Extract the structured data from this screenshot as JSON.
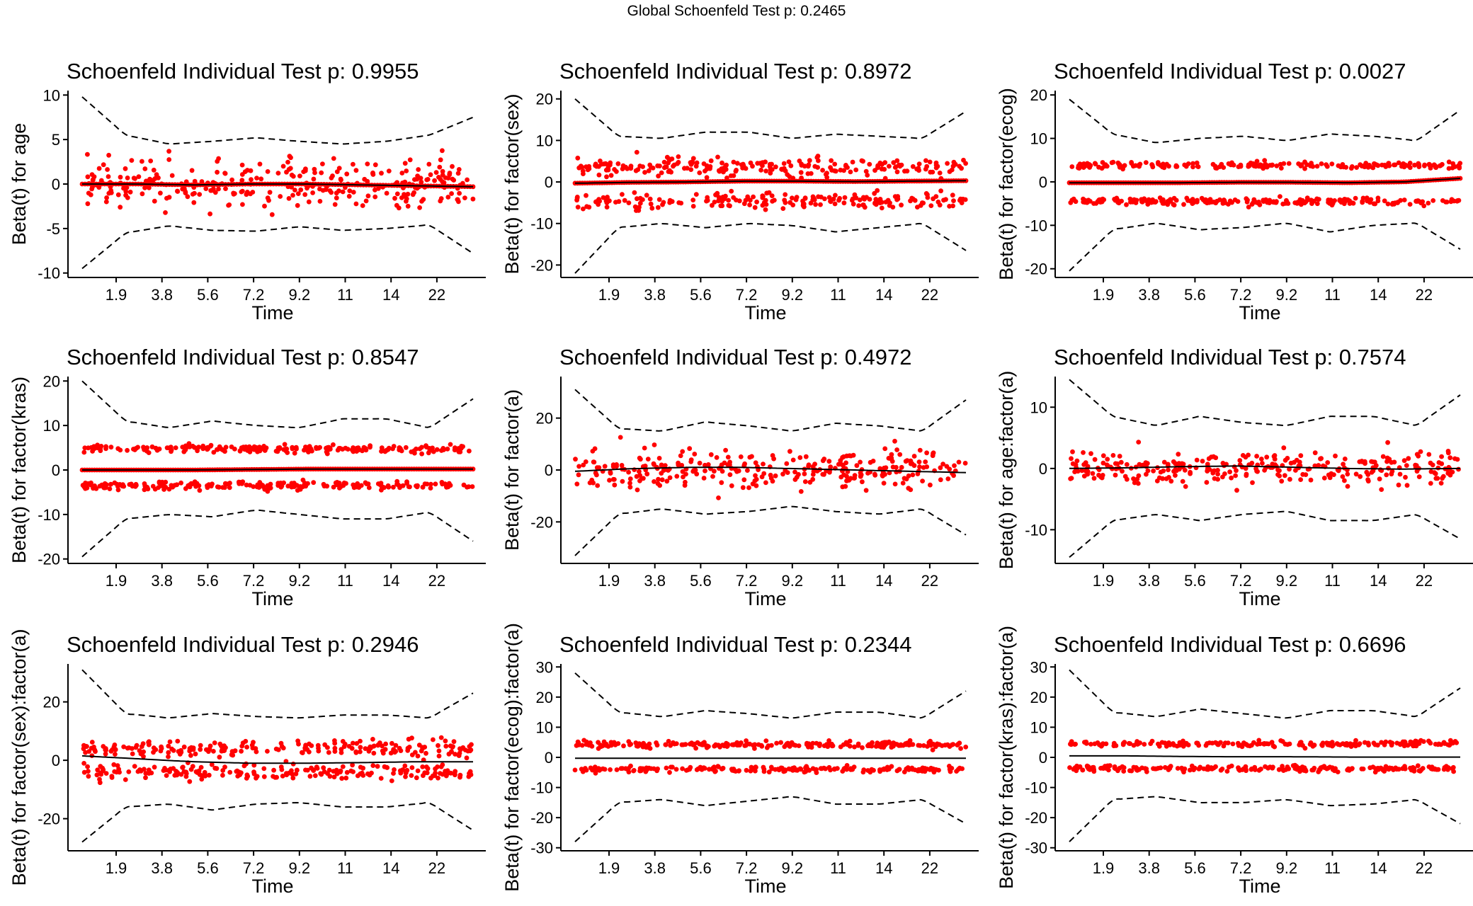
{
  "global_title": "Global Schoenfeld Test p: 0.2465",
  "colors": {
    "points": "#ff0000",
    "line": "#000000",
    "band": "#000000",
    "axis": "#000000"
  },
  "chart_data": [
    {
      "type": "scatter",
      "title": "Schoenfeld Individual Test p: 0.9955",
      "xlabel": "Time",
      "ylabel": "Beta(t) for age",
      "x_ticks": [
        "1.9",
        "3.8",
        "5.6",
        "7.2",
        "9.2",
        "11",
        "14",
        "22"
      ],
      "y_ticks": [
        -10,
        -5,
        0,
        5,
        10
      ],
      "ylim": [
        -10.5,
        10.5
      ],
      "point_clusters": [
        {
          "center": 0,
          "spread": 2.5
        }
      ],
      "fit": [
        0.0,
        0.0,
        -0.1,
        0.0,
        0.0,
        -0.1,
        -0.2,
        -0.3
      ],
      "band_upper": [
        9.8,
        5.5,
        4.5,
        4.8,
        5.2,
        4.8,
        4.5,
        4.8,
        5.5,
        7.5
      ],
      "band_lower": [
        -9.5,
        -5.5,
        -4.7,
        -5.2,
        -5.3,
        -4.8,
        -5.2,
        -5.0,
        -4.6,
        -7.8
      ]
    },
    {
      "type": "scatter",
      "title": "Schoenfeld Individual Test p: 0.8972",
      "xlabel": "Time",
      "ylabel": "Beta(t) for factor(sex)",
      "x_ticks": [
        "1.9",
        "3.8",
        "5.6",
        "7.2",
        "9.2",
        "11",
        "14",
        "22"
      ],
      "y_ticks": [
        -20,
        -10,
        0,
        10,
        20
      ],
      "ylim": [
        -23,
        22
      ],
      "point_clusters": [
        {
          "center": 3.5,
          "spread": 2
        },
        {
          "center": -4.5,
          "spread": 2
        }
      ],
      "fit": [
        -0.3,
        -0.1,
        0.0,
        0.2,
        0.2,
        0.1,
        0.2,
        0.3
      ],
      "band_upper": [
        20,
        11,
        10.5,
        12,
        12,
        10.5,
        11.5,
        11,
        10.5,
        17
      ],
      "band_lower": [
        -22,
        -11,
        -10,
        -11,
        -10,
        -10.5,
        -12,
        -11,
        -10,
        -16.5
      ]
    },
    {
      "type": "scatter",
      "title": "Schoenfeld Individual Test p: 0.0027",
      "xlabel": "Time",
      "ylabel": "Beta(t) for factor(ecog)",
      "x_ticks": [
        "1.9",
        "3.8",
        "5.6",
        "7.2",
        "9.2",
        "11",
        "14",
        "22"
      ],
      "y_ticks": [
        -20,
        -10,
        0,
        10,
        20
      ],
      "ylim": [
        -22,
        21
      ],
      "point_clusters": [
        {
          "center": 3.8,
          "spread": 0.7
        },
        {
          "center": -4.5,
          "spread": 0.7
        }
      ],
      "fit": [
        -0.2,
        -0.2,
        -0.2,
        -0.1,
        -0.1,
        -0.2,
        0.0,
        0.8
      ],
      "band_upper": [
        19,
        11,
        9,
        10,
        10.5,
        9.5,
        11,
        10.5,
        9.5,
        16.5
      ],
      "band_lower": [
        -20.5,
        -11,
        -9.5,
        -11,
        -10.5,
        -9.5,
        -11.5,
        -10,
        -9.5,
        -15.5
      ]
    },
    {
      "type": "scatter",
      "title": "Schoenfeld Individual Test p: 0.8547",
      "xlabel": "Time",
      "ylabel": "Beta(t) for factor(kras)",
      "x_ticks": [
        "1.9",
        "3.8",
        "5.6",
        "7.2",
        "9.2",
        "11",
        "14",
        "22"
      ],
      "y_ticks": [
        -20,
        -10,
        0,
        10,
        20
      ],
      "ylim": [
        -21,
        21
      ],
      "point_clusters": [
        {
          "center": 4.8,
          "spread": 0.8
        },
        {
          "center": -3.5,
          "spread": 0.9
        }
      ],
      "fit": [
        0.0,
        0.0,
        0.0,
        0.1,
        0.2,
        0.2,
        0.2,
        0.2
      ],
      "band_upper": [
        20,
        11,
        9.5,
        11,
        10,
        9.5,
        11.5,
        11.5,
        9.5,
        16
      ],
      "band_lower": [
        -19.5,
        -11,
        -10,
        -10.5,
        -9,
        -10,
        -11,
        -11,
        -9.5,
        -16
      ]
    },
    {
      "type": "scatter",
      "title": "Schoenfeld Individual Test p: 0.4972",
      "xlabel": "Time",
      "ylabel": "Beta(t) for factor(a)",
      "x_ticks": [
        "1.9",
        "3.8",
        "5.6",
        "7.2",
        "9.2",
        "11",
        "14",
        "22"
      ],
      "y_ticks": [
        -20,
        0,
        20
      ],
      "ylim": [
        -36,
        36
      ],
      "point_clusters": [
        {
          "center": 0,
          "spread": 7
        }
      ],
      "fit": [
        -0.5,
        0.5,
        1.0,
        1.0,
        0.5,
        0.0,
        -0.5,
        -1.0
      ],
      "band_upper": [
        31,
        16,
        15,
        18.5,
        17,
        15,
        18,
        17,
        15,
        27
      ],
      "band_lower": [
        -33,
        -17,
        -15,
        -17,
        -16,
        -14,
        -16,
        -17,
        -15,
        -25
      ]
    },
    {
      "type": "scatter",
      "title": "Schoenfeld Individual Test p: 0.7574",
      "xlabel": "Time",
      "ylabel": "Beta(t) for age:factor(a)",
      "x_ticks": [
        "1.9",
        "3.8",
        "5.6",
        "7.2",
        "9.2",
        "11",
        "14",
        "22"
      ],
      "y_ticks": [
        -10,
        0,
        10
      ],
      "ylim": [
        -15.5,
        15
      ],
      "point_clusters": [
        {
          "center": 0,
          "spread": 2.3
        }
      ],
      "fit": [
        0.0,
        0.1,
        0.3,
        0.4,
        0.2,
        0.0,
        -0.1,
        0.0
      ],
      "band_upper": [
        14.5,
        8.5,
        7,
        8.5,
        7.5,
        7,
        8.5,
        8.5,
        7,
        12
      ],
      "band_lower": [
        -14.5,
        -8.5,
        -7.5,
        -8.5,
        -7.5,
        -7,
        -8.5,
        -8.5,
        -7.5,
        -11.5
      ]
    },
    {
      "type": "scatter",
      "title": "Schoenfeld Individual Test p: 0.2946",
      "xlabel": "Time",
      "ylabel": "Beta(t) for factor(sex):factor(a)",
      "x_ticks": [
        "1.9",
        "3.8",
        "5.6",
        "7.2",
        "9.2",
        "11",
        "14",
        "22"
      ],
      "y_ticks": [
        -20,
        0,
        20
      ],
      "ylim": [
        -31,
        33
      ],
      "point_clusters": [
        {
          "center": 4,
          "spread": 2.5
        },
        {
          "center": -4,
          "spread": 2.5
        }
      ],
      "fit": [
        1.5,
        0.5,
        -0.5,
        -1.0,
        -1.0,
        -0.8,
        -0.5,
        -0.5
      ],
      "band_upper": [
        31,
        16,
        14.5,
        16,
        15,
        14.5,
        15.5,
        15.5,
        14.5,
        23
      ],
      "band_lower": [
        -28,
        -16,
        -15,
        -17,
        -15,
        -14.5,
        -16,
        -16,
        -14.5,
        -24
      ]
    },
    {
      "type": "scatter",
      "title": "Schoenfeld Individual Test p: 0.2344",
      "xlabel": "Time",
      "ylabel": "Beta(t) for factor(ecog):factor(a)",
      "x_ticks": [
        "1.9",
        "3.8",
        "5.6",
        "7.2",
        "9.2",
        "11",
        "14",
        "22"
      ],
      "y_ticks": [
        -30,
        -20,
        -10,
        0,
        10,
        20,
        30
      ],
      "ylim": [
        -31,
        31
      ],
      "point_clusters": [
        {
          "center": 4.2,
          "spread": 0.9
        },
        {
          "center": -4,
          "spread": 0.9
        }
      ],
      "fit": [
        -0.3,
        -0.3,
        -0.3,
        -0.3,
        -0.3,
        -0.3,
        -0.3,
        -0.3
      ],
      "band_upper": [
        28,
        15,
        13.5,
        15.5,
        14.5,
        13,
        15,
        15,
        13,
        22
      ],
      "band_lower": [
        -28,
        -15,
        -14,
        -16,
        -14.5,
        -13,
        -15.5,
        -15.5,
        -14,
        -22
      ]
    },
    {
      "type": "scatter",
      "title": "Schoenfeld Individual Test p: 0.6696",
      "xlabel": "Time",
      "ylabel": "Beta(t) for factor(kras):factor(a)",
      "x_ticks": [
        "1.9",
        "3.8",
        "5.6",
        "7.2",
        "9.2",
        "11",
        "14",
        "22"
      ],
      "y_ticks": [
        -30,
        -20,
        -10,
        0,
        10,
        20,
        30
      ],
      "ylim": [
        -31,
        31
      ],
      "point_clusters": [
        {
          "center": 4.5,
          "spread": 0.9
        },
        {
          "center": -3.8,
          "spread": 0.9
        }
      ],
      "fit": [
        0.5,
        0.5,
        0.3,
        0.2,
        0.2,
        0.1,
        0.1,
        0.1
      ],
      "band_upper": [
        29,
        15,
        13.5,
        16,
        14.5,
        13,
        15.5,
        15.5,
        13.5,
        23
      ],
      "band_lower": [
        -28,
        -14,
        -13,
        -15,
        -15,
        -14,
        -16,
        -15.5,
        -14,
        -22
      ]
    }
  ]
}
